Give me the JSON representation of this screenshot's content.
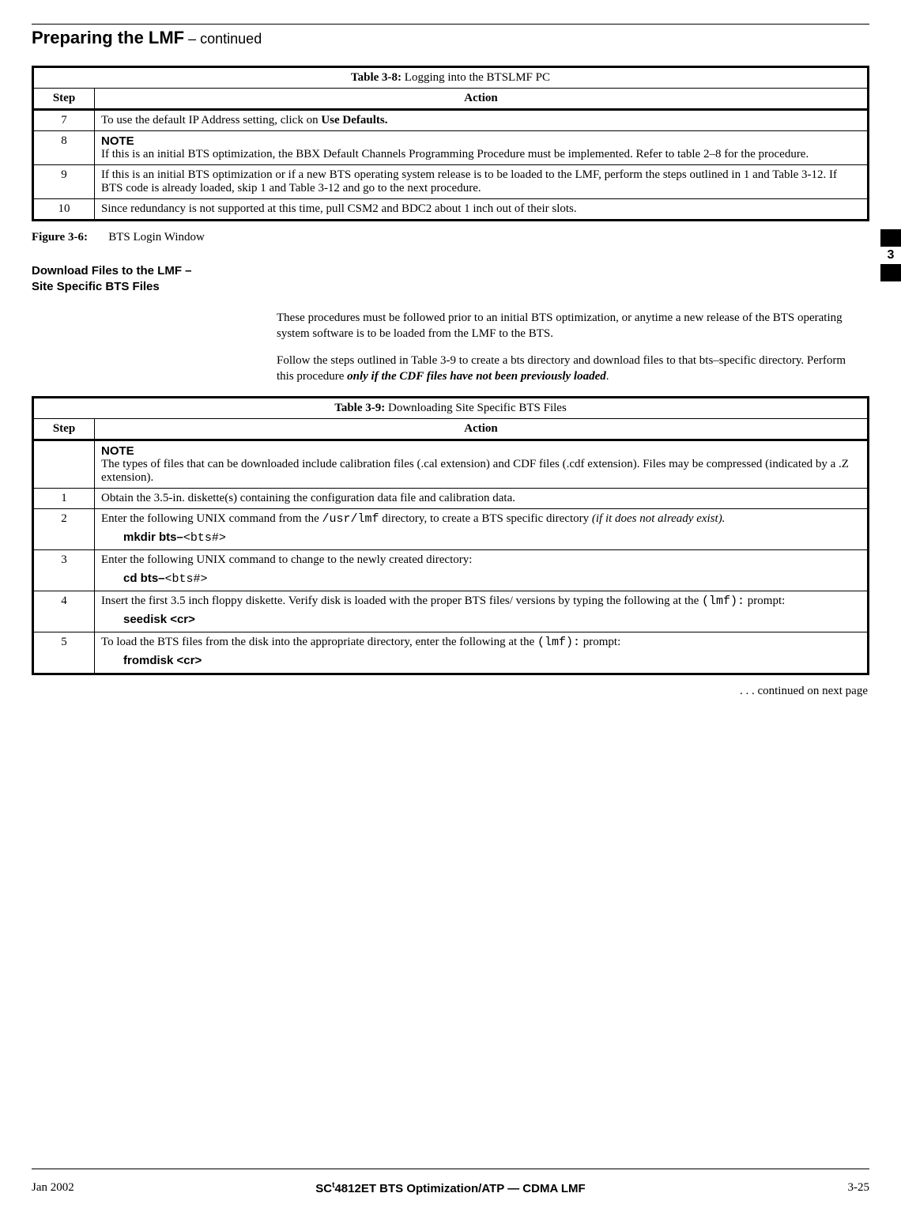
{
  "running_head": {
    "title": "Preparing the LMF",
    "cont": " – continued"
  },
  "side_tab": {
    "number": "3"
  },
  "table38": {
    "caption_label": "Table 3-8:",
    "caption_text": " Logging into the BTSLMF PC",
    "col_step": "Step",
    "col_action": "Action",
    "r7": {
      "step": "7",
      "pre": "To use the default IP Address setting, click on ",
      "bold": "Use Defaults."
    },
    "r8": {
      "step": "8",
      "note_label": "NOTE",
      "text": "If this is an initial BTS optimization, the BBX Default Channels Programming Procedure must be implemented. Refer to table 2–8 for the procedure."
    },
    "r9": {
      "step": "9",
      "text": "If this is an initial BTS optimization or if a new BTS operating system release is to be loaded to the LMF, perform the steps outlined in 1 and Table 3-12. If BTS code is already loaded, skip 1 and Table 3-12 and go to the next procedure."
    },
    "r10": {
      "step": "10",
      "text": "Since redundancy is not supported at this time, pull CSM2 and BDC2 about 1 inch out of their slots."
    }
  },
  "figure": {
    "label": "Figure 3-6:",
    "text": "BTS Login Window"
  },
  "section_head": {
    "l1": "Download Files to the LMF –",
    "l2": "Site Specific BTS Files"
  },
  "body": {
    "p1": "These procedures must be followed prior to an initial BTS optimization, or anytime a new release of the BTS operating system software is to be loaded from the LMF to the BTS.",
    "p2a": "Follow the steps outlined in Table 3-9 to create a bts directory and download files to that bts–specific directory. Perform this procedure ",
    "p2b": "only if the CDF files have not been previously loaded",
    "p2c": "."
  },
  "table39": {
    "caption_label": "Table 3-9:",
    "caption_text": " Downloading Site Specific BTS Files",
    "col_step": "Step",
    "col_action": "Action",
    "note_row": {
      "note_label": "NOTE",
      "text": "The types of files that can be downloaded include calibration files (.cal extension) and CDF files (.cdf extension).  Files may be compressed (indicated by a .Z extension)."
    },
    "r1": {
      "step": "1",
      "text": "Obtain the 3.5-in. diskette(s) containing the configuration data file and calibration data."
    },
    "r2": {
      "step": "2",
      "pre": "Enter the following UNIX command from the ",
      "mono": "/usr/lmf",
      "mid": " directory,  to create a BTS specific directory ",
      "ital": "(if it does not already exist).",
      "cmd_b": "mkdir bts–",
      "cmd_m": "<bts#>"
    },
    "r3": {
      "step": "3",
      "text": "Enter the following UNIX command to change to the newly created directory:",
      "cmd_b": "cd bts–",
      "cmd_m": "<bts#>"
    },
    "r4": {
      "step": "4",
      "pre": "Insert the first 3.5 inch floppy diskette. Verify disk is loaded with the proper BTS files/ versions by typing the following at the ",
      "mono": " (lmf):",
      "post": " prompt:",
      "cmd_b": "seedisk <cr>"
    },
    "r5": {
      "step": "5",
      "pre": "To load the BTS files from the disk into the appropriate directory, enter the following at the ",
      "mono": "(lmf):",
      "post": " prompt:",
      "cmd_b": "fromdisk <cr>"
    }
  },
  "continued": ". . . continued on next page",
  "footer": {
    "left": "Jan 2002",
    "center_pre": "SC",
    "center_tm": "t",
    "center_post": "4812ET BTS Optimization/ATP — CDMA LMF",
    "right": "3-25"
  }
}
